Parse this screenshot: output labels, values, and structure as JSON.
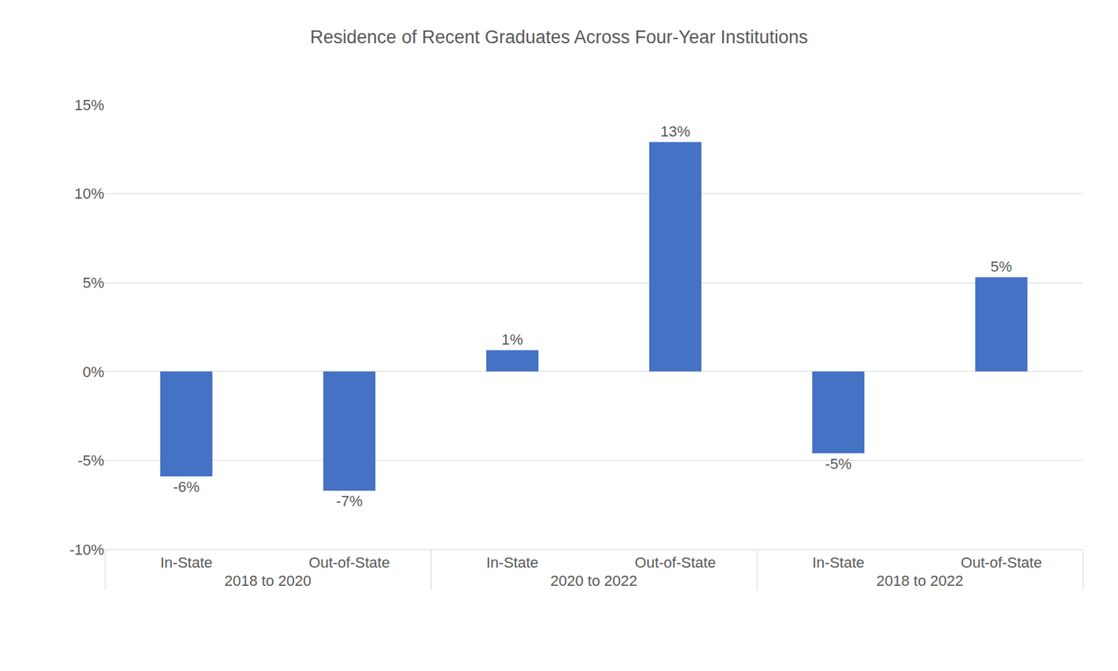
{
  "chart_data": {
    "type": "bar",
    "title": "Residence of Recent Graduates Across Four-Year Institutions",
    "categories": [
      [
        "2018 to 2020",
        "In-State"
      ],
      [
        "2018 to 2020",
        "Out-of-State"
      ],
      [
        "2020 to 2022",
        "In-State"
      ],
      [
        "2020 to 2022",
        "Out-of-State"
      ],
      [
        "2018 to 2022",
        "In-State"
      ],
      [
        "2018 to 2022",
        "Out-of-State"
      ]
    ],
    "values": [
      -5.9,
      -6.7,
      1.2,
      12.9,
      -4.6,
      5.3
    ],
    "value_labels": [
      "-6%",
      "-7%",
      "1%",
      "13%",
      "-5%",
      "5%"
    ],
    "color": "#4472c4",
    "ylim": [
      -10,
      15
    ],
    "yticks": [
      {
        "value": -10,
        "label": "-10%"
      },
      {
        "value": -5,
        "label": "-5%"
      },
      {
        "value": 0,
        "label": "0%"
      },
      {
        "value": 5,
        "label": "5%"
      },
      {
        "value": 10,
        "label": "10%"
      },
      {
        "value": 15,
        "label": "15%"
      }
    ],
    "grid": true,
    "data_labels": true
  }
}
